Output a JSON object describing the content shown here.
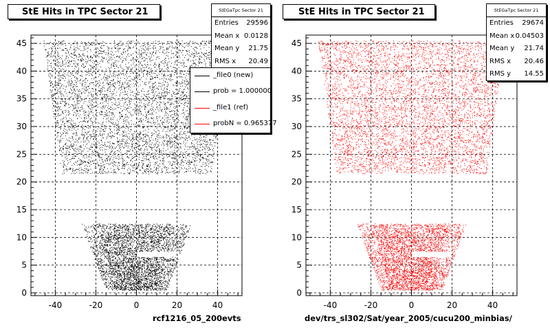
{
  "colors": {
    "file0": "#000000",
    "file1": "#ff0000",
    "grid": "#000000"
  },
  "charts": [
    {
      "title": "StE Hits in TPC Sector 21",
      "stats": {
        "name": "StEGaTpc Sector 21",
        "rows": [
          {
            "key": "Entries",
            "value": "29596"
          },
          {
            "key": "Mean x",
            "value": "0.0128"
          },
          {
            "key": "Mean y",
            "value": "21.75"
          },
          {
            "key": "RMS x",
            "value": "20.49"
          }
        ]
      },
      "legend": [
        {
          "label": "_file0 (new)",
          "color": "#000000"
        },
        {
          "label": "prob = 1.000000",
          "color": "#000000"
        },
        {
          "label": "_file1 (ref)",
          "color": "#ff0000"
        },
        {
          "label": "probN = 0.965377",
          "color": "#ff0000"
        }
      ],
      "xtitle": "rcf1216_05_200evts"
    },
    {
      "title": "StE Hits in TPC Sector 21",
      "stats": {
        "name": "StEGaTpc Sector 21",
        "rows": [
          {
            "key": "Entries",
            "value": "29674"
          },
          {
            "key": "Mean x",
            "value": "0.04503"
          },
          {
            "key": "Mean y",
            "value": "21.74"
          },
          {
            "key": "RMS x",
            "value": "20.46"
          },
          {
            "key": "RMS y",
            "value": "14.55"
          }
        ]
      },
      "xtitle": "dev/trs_sl302/Sat/year_2005/cucu200_minbias/"
    }
  ],
  "chart_data": [
    {
      "type": "scatter",
      "title": "StE Hits in TPC Sector 21",
      "xlabel": "rcf1216_05_200evts",
      "ylabel": "",
      "xlim": [
        -52,
        52
      ],
      "ylim": [
        -0.5,
        46.5
      ],
      "xticks": [
        -40,
        -20,
        0,
        20,
        40
      ],
      "yticks": [
        0,
        5,
        10,
        15,
        20,
        25,
        30,
        35,
        40,
        45
      ],
      "grid": true,
      "series": [
        {
          "name": "_file0 (new)",
          "color": "#000000",
          "regions": [
            {
              "y": [
                21.5,
                45.5
              ],
              "x_at_ymin": [
                -37,
                37
              ],
              "x_at_ymax": [
                -46,
                46
              ]
            },
            {
              "y": [
                0.5,
                12.5
              ],
              "x_at_ymin": [
                -15,
                15
              ],
              "x_at_ymax": [
                -27,
                27
              ],
              "gap": {
                "x": [
                  0,
                  20
                ],
                "y": [
                  6.5,
                  7.5
                ]
              }
            }
          ],
          "entries": 29596,
          "mean_x": 0.0128,
          "mean_y": 21.75,
          "rms_x": 20.49
        }
      ]
    },
    {
      "type": "scatter",
      "title": "StE Hits in TPC Sector 21",
      "xlabel": "dev/trs_sl302/Sat/year_2005/cucu200_minbias/",
      "ylabel": "",
      "xlim": [
        -52,
        52
      ],
      "ylim": [
        -0.5,
        46.5
      ],
      "xticks": [
        -40,
        -20,
        0,
        20,
        40
      ],
      "yticks": [
        0,
        5,
        10,
        15,
        20,
        25,
        30,
        35,
        40,
        45
      ],
      "grid": true,
      "series": [
        {
          "name": "_file1 (ref)",
          "color": "#ff0000",
          "regions": [
            {
              "y": [
                21.5,
                45.5
              ],
              "x_at_ymin": [
                -37,
                37
              ],
              "x_at_ymax": [
                -46,
                46
              ]
            },
            {
              "y": [
                0.5,
                12.5
              ],
              "x_at_ymin": [
                -15,
                15
              ],
              "x_at_ymax": [
                -27,
                27
              ],
              "gap": {
                "x": [
                  0,
                  20
                ],
                "y": [
                  6.5,
                  7.5
                ]
              }
            }
          ],
          "entries": 29674,
          "mean_x": 0.04503,
          "mean_y": 21.74,
          "rms_x": 20.46,
          "rms_y": 14.55
        }
      ]
    }
  ]
}
